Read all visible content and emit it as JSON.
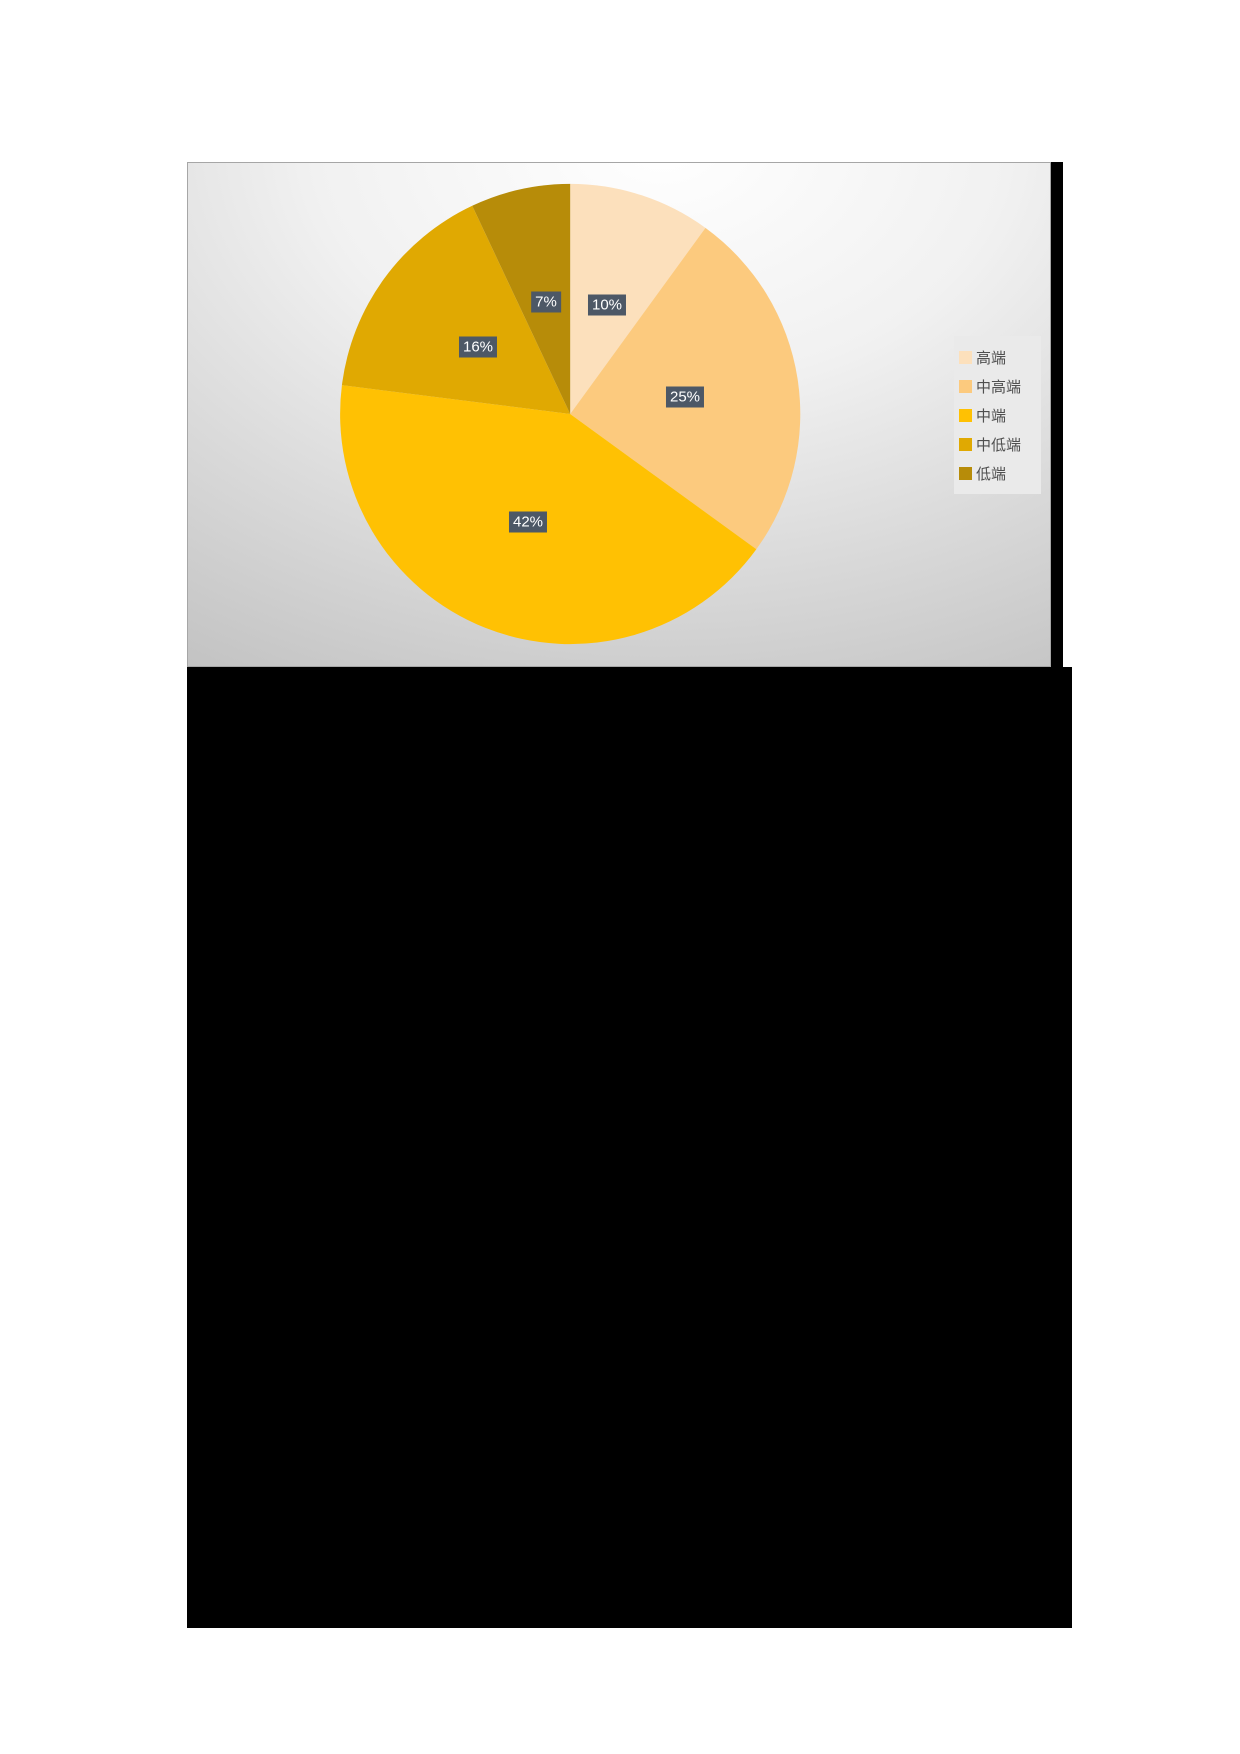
{
  "chart_data": {
    "type": "pie",
    "title": "",
    "categories": [
      "高端",
      "中高端",
      "中端",
      "中低端",
      "低端"
    ],
    "values": [
      10,
      25,
      42,
      16,
      7
    ],
    "slices": [
      {
        "label": "高端",
        "value": 10,
        "data_label": "10%",
        "color": "#FCE0BC"
      },
      {
        "label": "中高端",
        "value": 25,
        "data_label": "25%",
        "color": "#FCCA7E"
      },
      {
        "label": "中端",
        "value": 42,
        "data_label": "42%",
        "color": "#FFC103"
      },
      {
        "label": "中低端",
        "value": 16,
        "data_label": "16%",
        "color": "#E0A902"
      },
      {
        "label": "低端",
        "value": 7,
        "data_label": "7%",
        "color": "#B78C09"
      }
    ],
    "start_angle_deg": 0,
    "direction": "clockwise",
    "legend_position": "right",
    "data_label_format": "percent",
    "data_label_box_color": "#4D5866",
    "data_label_text_color": "#FFFFFF"
  },
  "colors": {
    "page_background": "#FFFFFF",
    "panel_gradient_center": "#FFFFFF",
    "panel_gradient_edge": "#C0C0C0",
    "legend_background": "#EAEAEA",
    "legend_text": "#4F4F4F",
    "redacted_region": "#000000"
  }
}
